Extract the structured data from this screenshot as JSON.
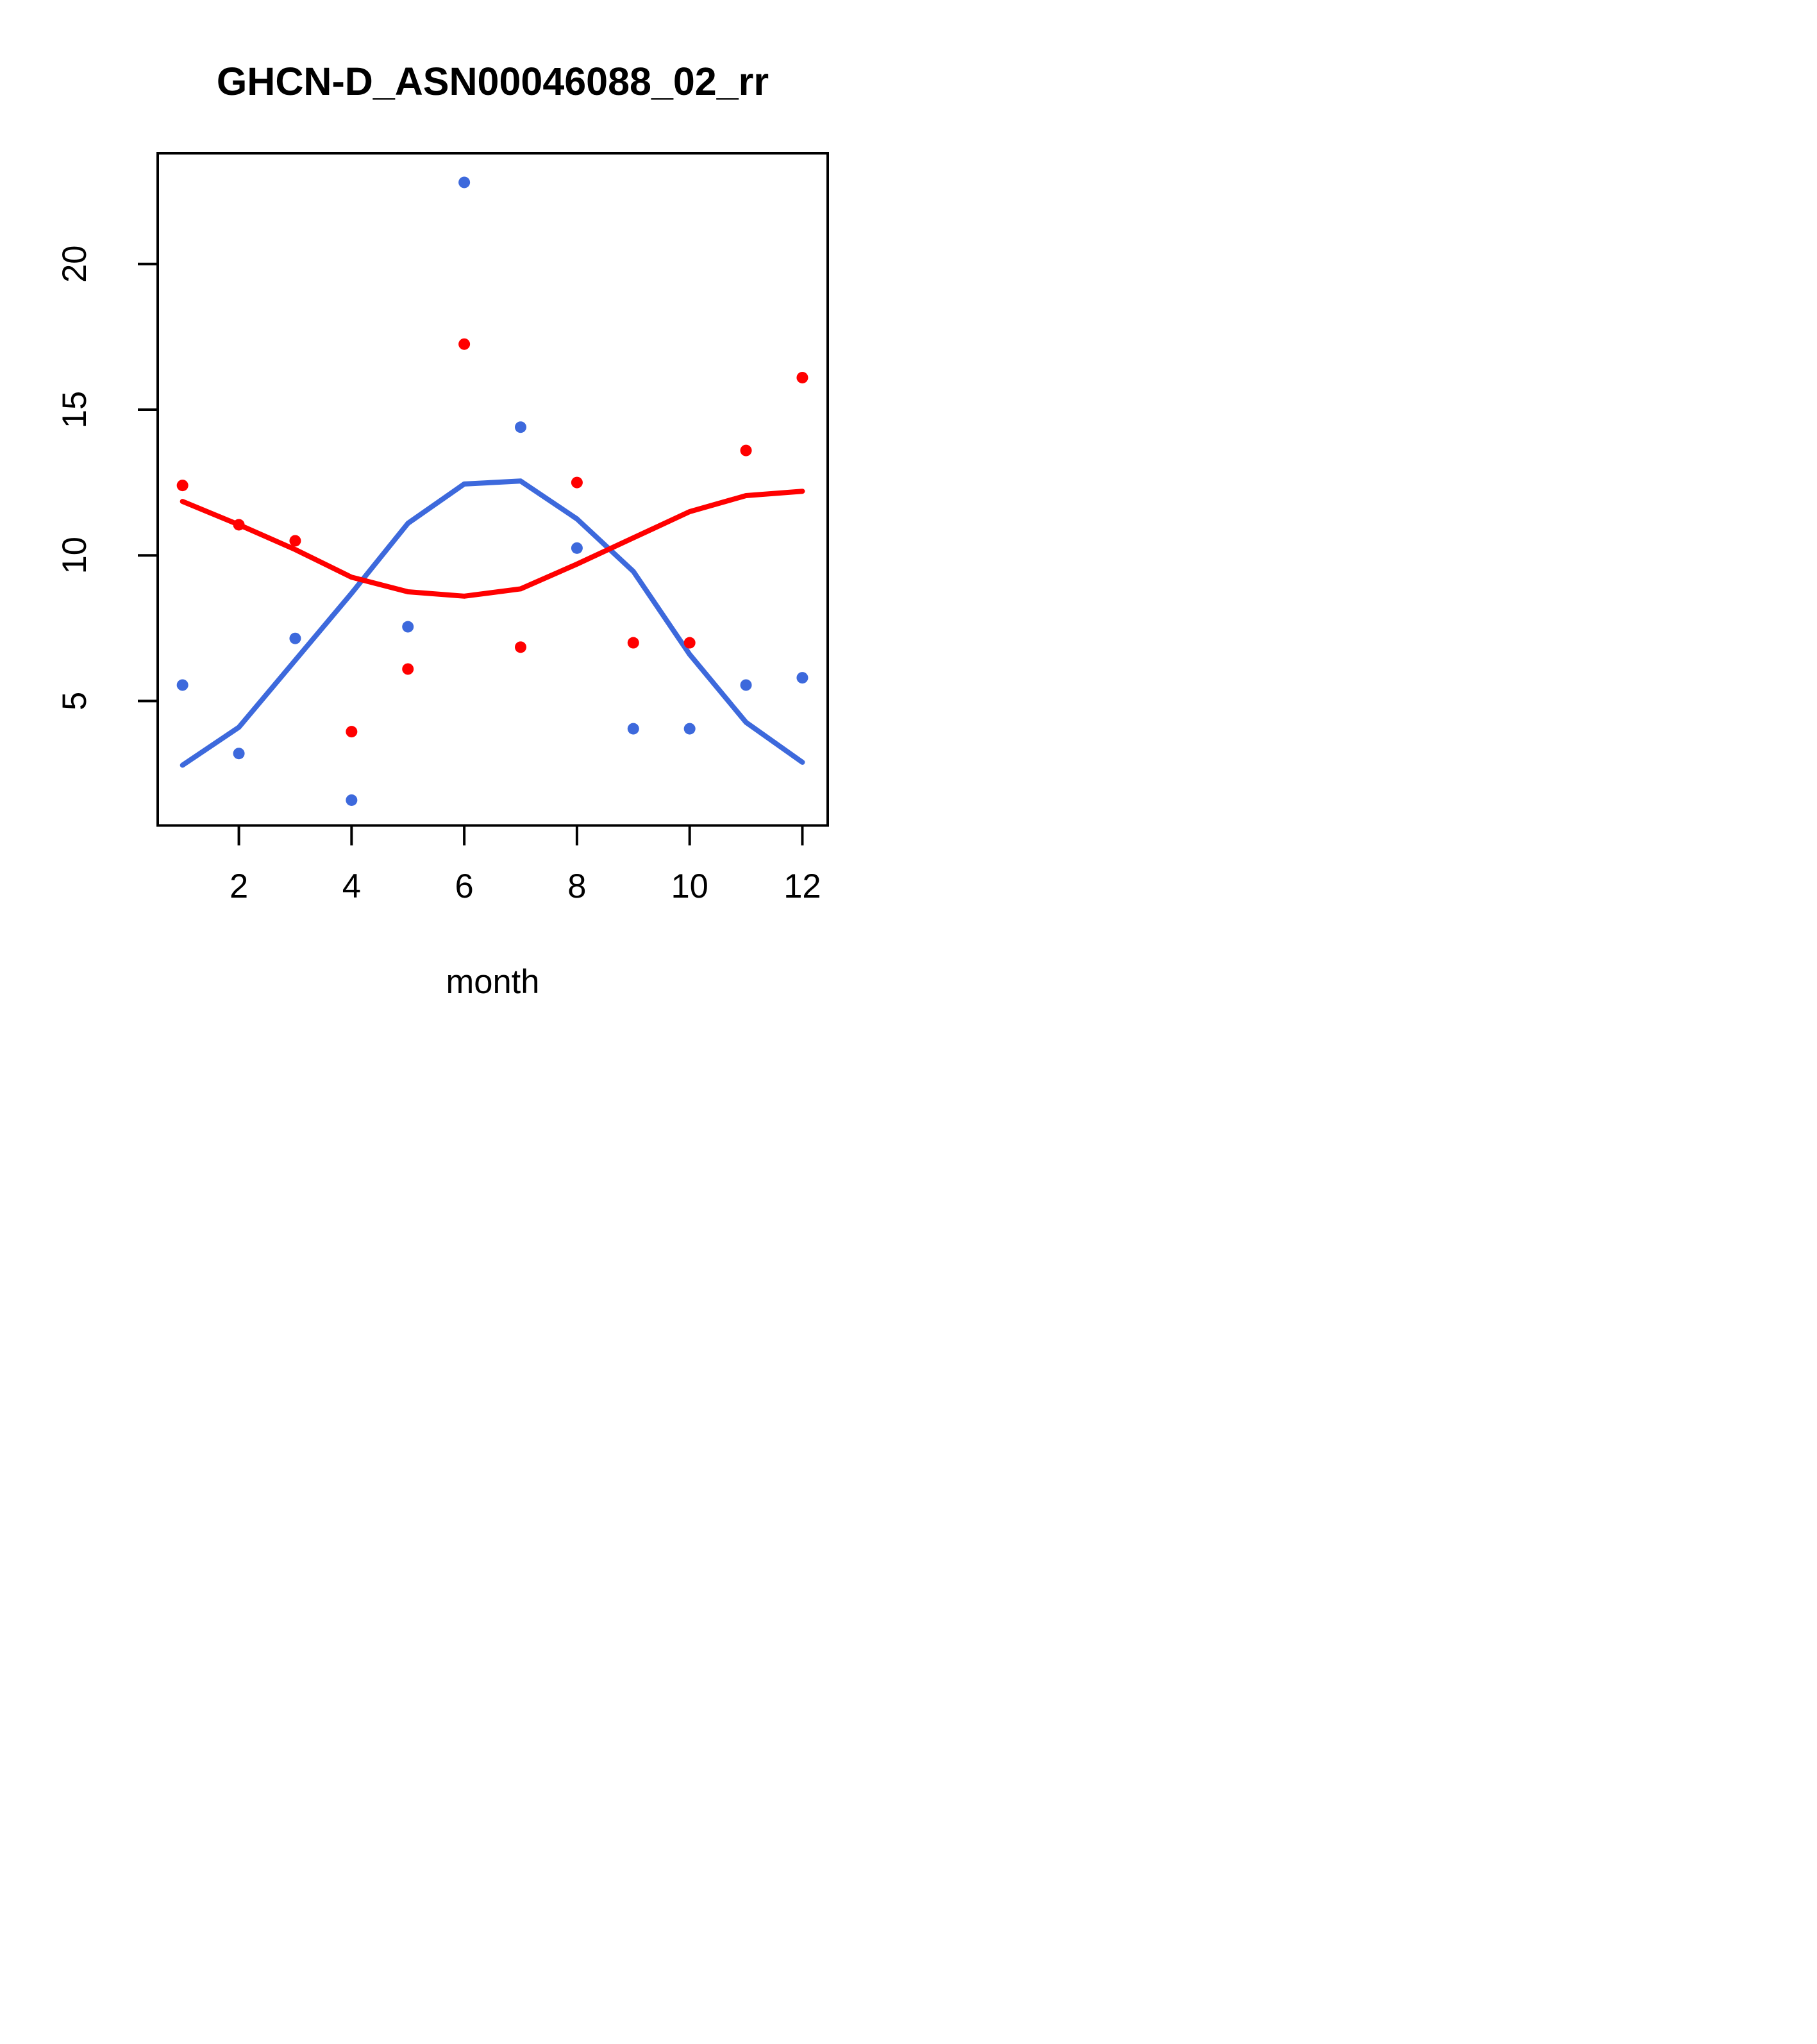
{
  "title": "GHCN-D_ASN00046088_02_rr",
  "chart_data": {
    "type": "scatter",
    "title": "GHCN-D_ASN00046088_02_rr",
    "xlabel": "month",
    "ylabel": "",
    "x": [
      1,
      2,
      3,
      4,
      5,
      6,
      7,
      8,
      9,
      10,
      11,
      12
    ],
    "x_ticks": [
      2,
      4,
      6,
      8,
      10,
      12
    ],
    "y_ticks": [
      5,
      10,
      15,
      20
    ],
    "xlim": [
      0.56,
      12.45
    ],
    "ylim": [
      0.73,
      23.8
    ],
    "grid": false,
    "legend_position": "none",
    "colors": {
      "series1": "#3D69DC",
      "series2": "#FF0000"
    },
    "series": [
      {
        "name": "series-1-points",
        "kind": "points",
        "color": "#3D69DC",
        "values": [
          5.55,
          3.2,
          7.15,
          1.6,
          7.55,
          22.8,
          14.4,
          10.25,
          4.05,
          4.05,
          5.55,
          5.8
        ]
      },
      {
        "name": "series-1-smooth",
        "kind": "line",
        "color": "#3D69DC",
        "values": [
          2.8,
          4.1,
          6.4,
          8.7,
          11.1,
          12.45,
          12.55,
          11.25,
          9.45,
          6.6,
          4.27,
          2.9
        ]
      },
      {
        "name": "series-2-points",
        "kind": "points",
        "color": "#FF0000",
        "values": [
          12.4,
          11.05,
          10.5,
          3.95,
          6.1,
          17.25,
          6.85,
          12.5,
          7.0,
          7.0,
          13.6,
          16.1
        ]
      },
      {
        "name": "series-2-smooth",
        "kind": "line",
        "color": "#FF0000",
        "values": [
          11.85,
          11.05,
          10.2,
          9.25,
          8.75,
          8.6,
          8.85,
          9.7,
          10.6,
          11.5,
          12.05,
          12.2
        ]
      }
    ]
  }
}
